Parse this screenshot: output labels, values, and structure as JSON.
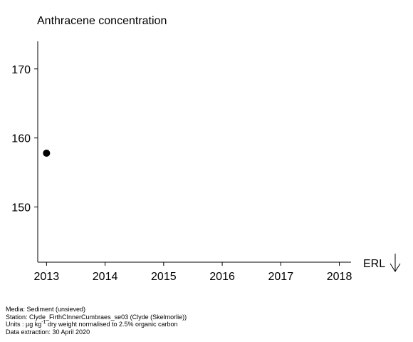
{
  "chart_data": {
    "type": "scatter",
    "title": "Anthracene concentration",
    "xlabel": "",
    "ylabel": "",
    "xlim": [
      2012.85,
      2018.2
    ],
    "ylim": [
      142,
      174
    ],
    "x_ticks": [
      2013,
      2014,
      2015,
      2016,
      2017,
      2018
    ],
    "y_ticks": [
      150,
      160,
      170
    ],
    "series": [
      {
        "x": [
          2013
        ],
        "y": [
          157.8
        ]
      }
    ],
    "grid": false,
    "annotation": {
      "text": "ERL",
      "symbol": "down-arrow"
    }
  },
  "footer": {
    "media": "Media: Sediment (unsieved)",
    "station": "Station: Clyde_FirthCInnerCumbraes_se03 (Clyde (Skelmorlie))",
    "units_prefix": "Units : µg kg",
    "units_exp": "-1",
    "units_suffix": " dry weight normalised to 2.5% organic carbon",
    "extraction": "Data extraction: 30 April 2020"
  },
  "colors": {
    "marker": "#000000",
    "axis": "#000000"
  }
}
